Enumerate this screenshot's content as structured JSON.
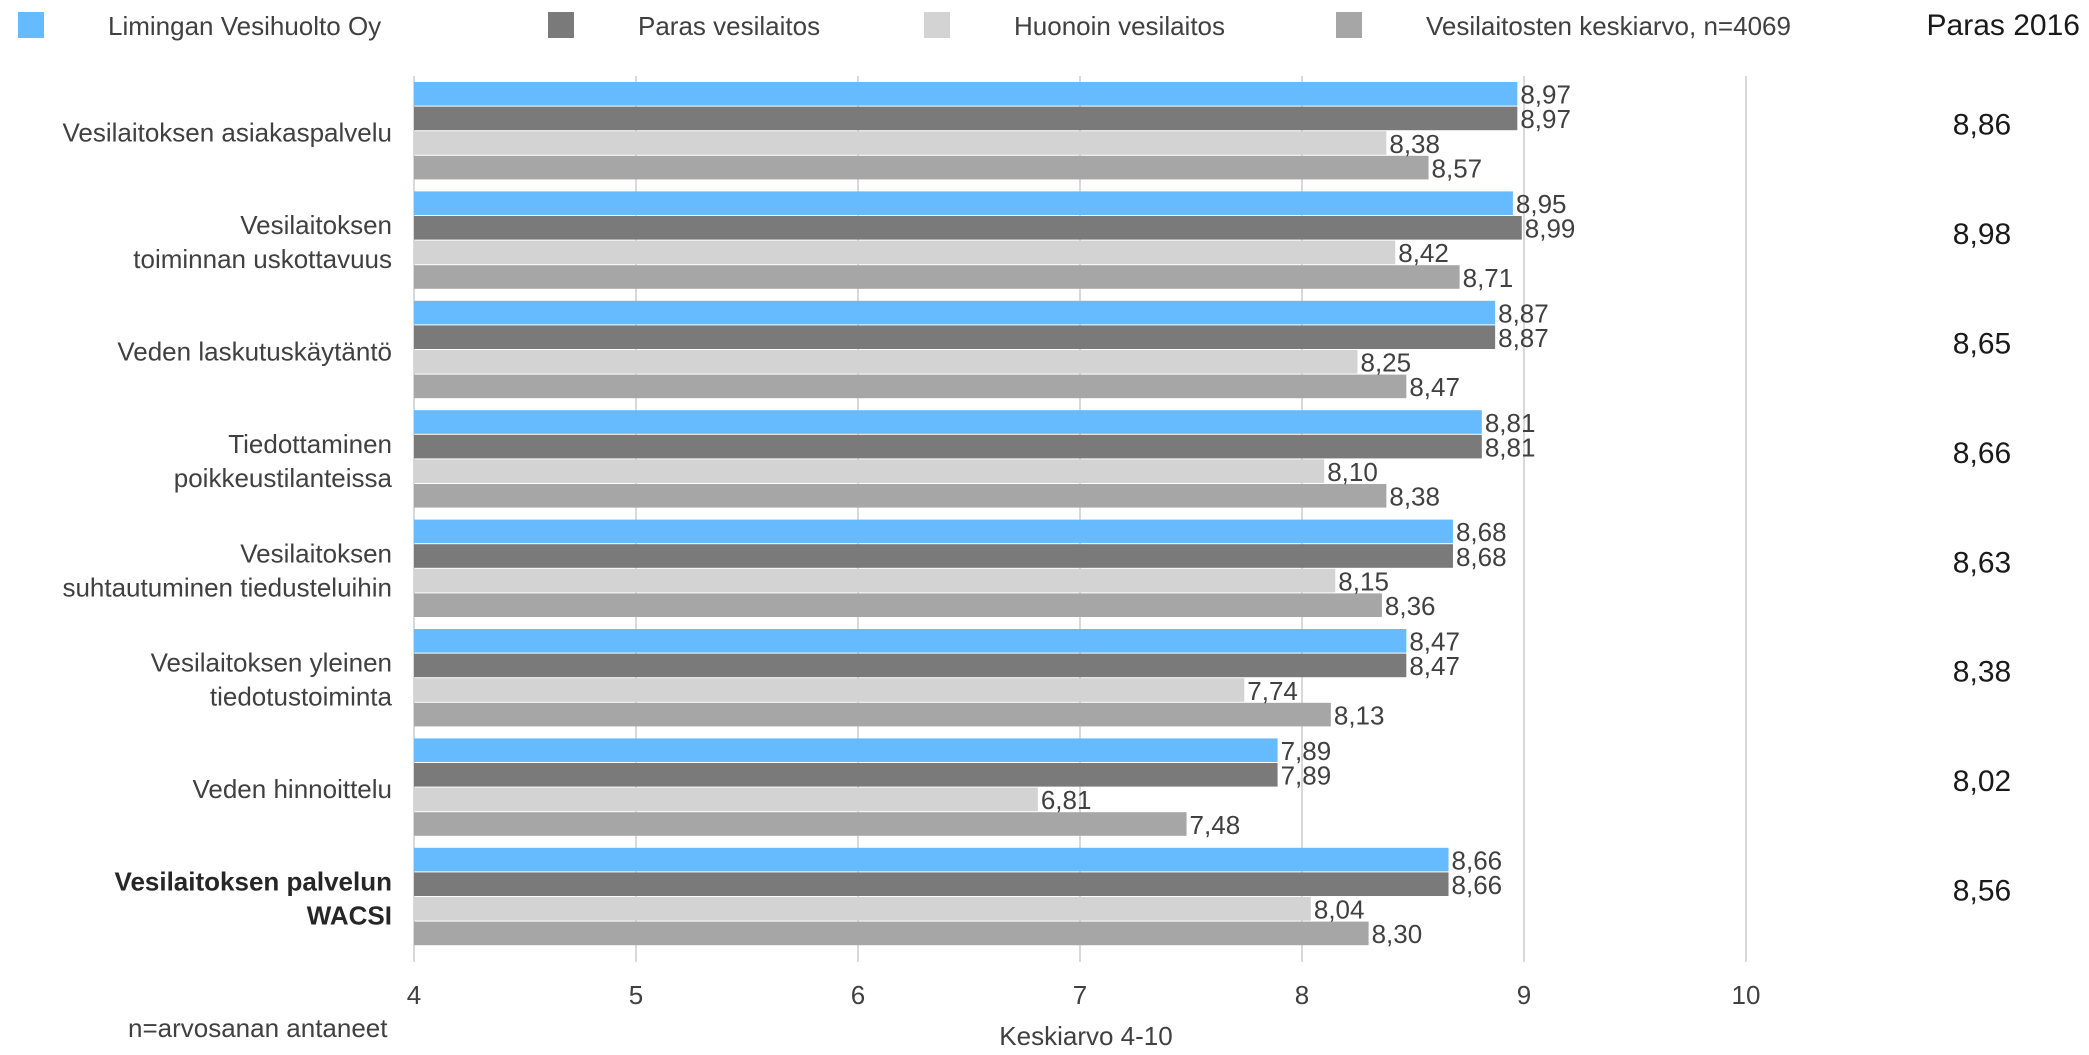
{
  "chart_data": {
    "type": "bar",
    "orientation": "horizontal",
    "categories": [
      [
        "Vesilaitoksen asiakaspalvelu"
      ],
      [
        "Vesilaitoksen",
        "toiminnan uskottavuus"
      ],
      [
        "Veden laskutuskäytäntö"
      ],
      [
        "Tiedottaminen",
        "poikkeustilanteissa"
      ],
      [
        "Vesilaitoksen",
        "suhtautuminen tiedusteluihin"
      ],
      [
        "Vesilaitoksen yleinen",
        "tiedotustoiminta"
      ],
      [
        "Veden hinnoittelu"
      ],
      [
        "Vesilaitoksen palvelun",
        "WACSI"
      ]
    ],
    "bold_category_index": 7,
    "series": [
      {
        "name": "Limingan Vesihuolto Oy",
        "color": "#66BBFF",
        "values": [
          8.97,
          8.95,
          8.87,
          8.81,
          8.68,
          8.47,
          7.89,
          8.66
        ],
        "labels": [
          "8,97",
          "8,95",
          "8,87",
          "8,81",
          "8,68",
          "8,47",
          "7,89",
          "8,66"
        ]
      },
      {
        "name": "Paras vesilaitos",
        "color": "#7A7A7A",
        "values": [
          8.97,
          8.99,
          8.87,
          8.81,
          8.68,
          8.47,
          7.89,
          8.66
        ],
        "labels": [
          "8,97",
          "8,99",
          "8,87",
          "8,81",
          "8,68",
          "8,47",
          "7,89",
          "8,66"
        ]
      },
      {
        "name": "Huonoin vesilaitos",
        "color": "#D3D3D3",
        "values": [
          8.38,
          8.42,
          8.25,
          8.1,
          8.15,
          7.74,
          6.81,
          8.04
        ],
        "labels": [
          "8,38",
          "8,42",
          "8,25",
          "8,10",
          "8,15",
          "7,74",
          "6,81",
          "8,04"
        ]
      },
      {
        "name": "Vesilaitosten keskiarvo, n=4069",
        "color": "#A6A6A6",
        "values": [
          8.57,
          8.71,
          8.47,
          8.38,
          8.36,
          8.13,
          7.48,
          8.3
        ],
        "labels": [
          "8,57",
          "8,71",
          "8,47",
          "8,38",
          "8,36",
          "8,13",
          "7,48",
          "8,30"
        ]
      }
    ],
    "xlim": [
      4,
      10
    ],
    "xticks": [
      "4",
      "5",
      "6",
      "7",
      "8",
      "9",
      "10"
    ],
    "xlabel": "Keskiarvo 4-10",
    "footnote": "n=arvosanan antaneet",
    "legend_position": "top",
    "grid": true,
    "side_column": {
      "title": "Paras 2016",
      "values": [
        "8,86",
        "8,98",
        "8,65",
        "8,66",
        "8,63",
        "8,38",
        "8,02",
        "8,56"
      ]
    }
  }
}
